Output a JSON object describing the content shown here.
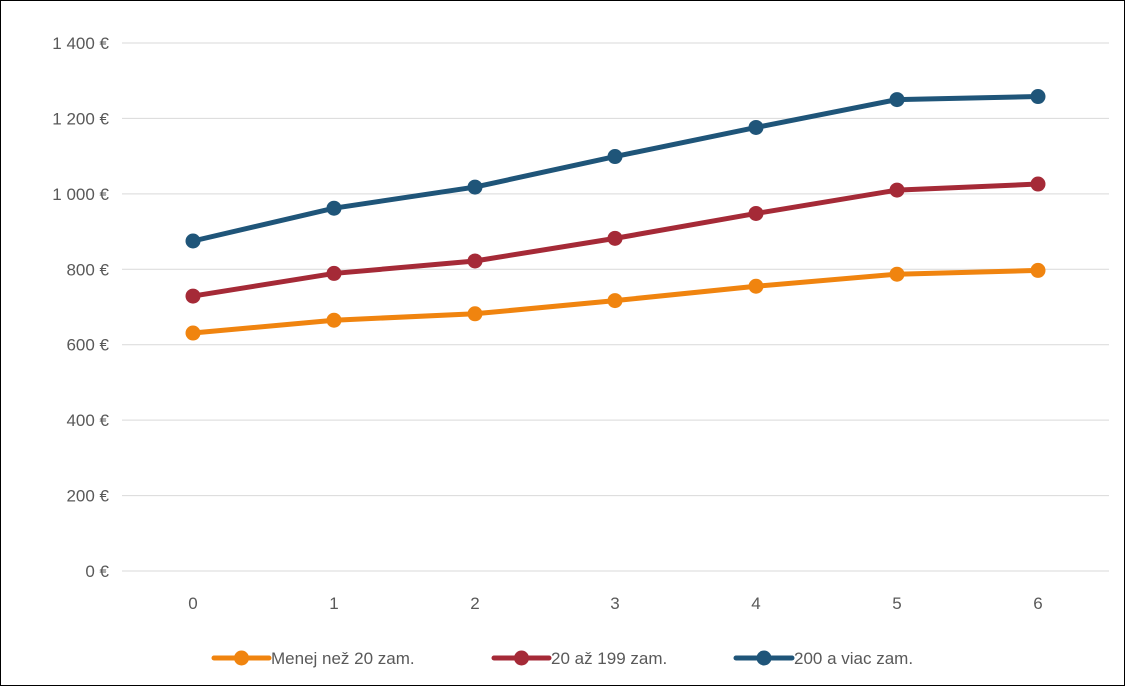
{
  "chart_data": {
    "type": "line",
    "title": "",
    "xlabel": "",
    "ylabel": "",
    "x": [
      0,
      1,
      2,
      3,
      4,
      5,
      6
    ],
    "ylim": [
      0,
      1400
    ],
    "yticks": [
      0,
      200,
      400,
      600,
      800,
      1000,
      1200,
      1400
    ],
    "ytick_labels": [
      "0 €",
      "200 €",
      "400 €",
      "600 €",
      "800 €",
      "1 000 €",
      "1 200 €",
      "1 400 €"
    ],
    "xtick_labels": [
      "0",
      "1",
      "2",
      "3",
      "4",
      "5",
      "6"
    ],
    "grid": "horizontal",
    "legend_position": "bottom",
    "series": [
      {
        "name": "Menej než 20 zam.",
        "color": "#F0840F",
        "values": [
          631,
          665,
          682,
          717,
          755,
          787,
          797
        ]
      },
      {
        "name": "20 až 199 zam.",
        "color": "#A52A37",
        "values": [
          729,
          789,
          822,
          882,
          948,
          1010,
          1026
        ]
      },
      {
        "name": "200 a viac zam.",
        "color": "#1F5579",
        "values": [
          875,
          962,
          1018,
          1099,
          1176,
          1250,
          1258
        ]
      }
    ]
  }
}
